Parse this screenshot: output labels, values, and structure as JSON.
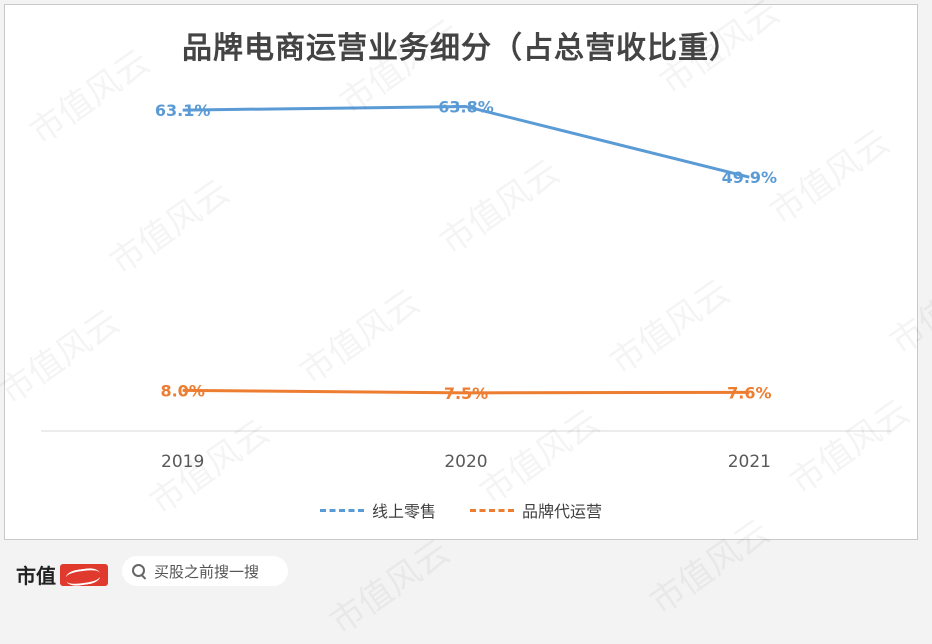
{
  "chart_data": {
    "type": "line",
    "title": "品牌电商运营业务细分（占总营收比重）",
    "categories": [
      "2019",
      "2020",
      "2021"
    ],
    "series": [
      {
        "name": "线上零售",
        "values": [
          63.1,
          63.8,
          49.9
        ],
        "labels": [
          "63.1%",
          "63.8%",
          "49.9%"
        ],
        "color": "#5b9bd5"
      },
      {
        "name": "品牌代运营",
        "values": [
          8.0,
          7.5,
          7.6
        ],
        "labels": [
          "8.0%",
          "7.5%",
          "7.6%"
        ],
        "color": "#ed7d31"
      }
    ],
    "ylim": [
      0,
      70
    ],
    "grid": false,
    "legend_position": "bottom"
  },
  "watermark": "市值风云",
  "footer": {
    "brand": "市值",
    "search_placeholder": "买股之前搜一搜"
  }
}
